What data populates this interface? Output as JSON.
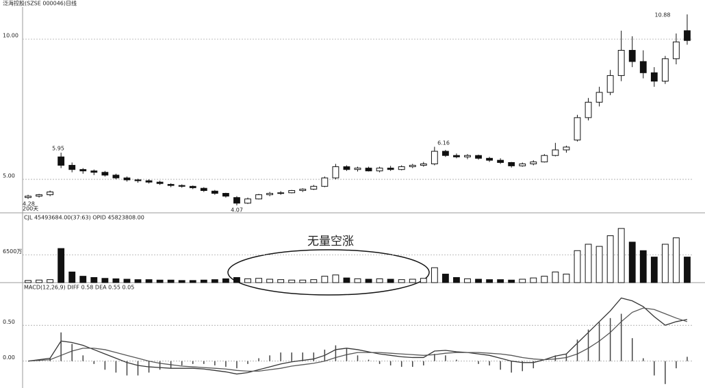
{
  "header": "泛海控股(SZSE 000046)日线",
  "chart_data": [
    {
      "type": "candlestick",
      "annotations": [
        "5.95",
        "6.16",
        "4.07",
        "10.88",
        "4.28",
        "200天"
      ],
      "ylim": [
        3.83,
        11.15
      ],
      "yticks": [
        {
          "value": 10,
          "label": "10.00"
        },
        {
          "value": 5,
          "label": "5.00"
        }
      ],
      "grid": true,
      "ohlc": [
        [
          4.35,
          4.45,
          4.3,
          4.4
        ],
        [
          4.4,
          4.48,
          4.35,
          4.45
        ],
        [
          4.45,
          4.6,
          4.4,
          4.55
        ],
        [
          5.8,
          5.95,
          5.4,
          5.5
        ],
        [
          5.5,
          5.6,
          5.25,
          5.35
        ],
        [
          5.35,
          5.4,
          5.2,
          5.3
        ],
        [
          5.3,
          5.35,
          5.15,
          5.25
        ],
        [
          5.25,
          5.3,
          5.1,
          5.15
        ],
        [
          5.15,
          5.2,
          5.0,
          5.05
        ],
        [
          5.05,
          5.1,
          4.92,
          4.98
        ],
        [
          4.98,
          5.02,
          4.88,
          4.95
        ],
        [
          4.95,
          5.0,
          4.85,
          4.9
        ],
        [
          4.9,
          4.95,
          4.8,
          4.85
        ],
        [
          4.82,
          4.86,
          4.72,
          4.78
        ],
        [
          4.78,
          4.82,
          4.7,
          4.75
        ],
        [
          4.75,
          4.78,
          4.65,
          4.7
        ],
        [
          4.68,
          4.72,
          4.55,
          4.6
        ],
        [
          4.58,
          4.62,
          4.45,
          4.5
        ],
        [
          4.5,
          4.52,
          4.35,
          4.4
        ],
        [
          4.35,
          4.4,
          4.07,
          4.15
        ],
        [
          4.15,
          4.35,
          4.12,
          4.3
        ],
        [
          4.3,
          4.48,
          4.28,
          4.45
        ],
        [
          4.45,
          4.55,
          4.4,
          4.5
        ],
        [
          4.5,
          4.58,
          4.45,
          4.52
        ],
        [
          4.52,
          4.62,
          4.5,
          4.6
        ],
        [
          4.6,
          4.68,
          4.55,
          4.65
        ],
        [
          4.65,
          4.8,
          4.62,
          4.75
        ],
        [
          4.75,
          5.1,
          4.72,
          5.05
        ],
        [
          5.05,
          5.55,
          5.0,
          5.45
        ],
        [
          5.45,
          5.5,
          5.3,
          5.35
        ],
        [
          5.35,
          5.45,
          5.28,
          5.4
        ],
        [
          5.4,
          5.45,
          5.28,
          5.3
        ],
        [
          5.3,
          5.45,
          5.25,
          5.4
        ],
        [
          5.4,
          5.48,
          5.3,
          5.35
        ],
        [
          5.35,
          5.5,
          5.32,
          5.45
        ],
        [
          5.45,
          5.55,
          5.4,
          5.5
        ],
        [
          5.5,
          5.62,
          5.45,
          5.55
        ],
        [
          5.55,
          6.16,
          5.5,
          6.0
        ],
        [
          6.0,
          6.05,
          5.8,
          5.85
        ],
        [
          5.85,
          5.92,
          5.75,
          5.8
        ],
        [
          5.8,
          5.9,
          5.72,
          5.85
        ],
        [
          5.85,
          5.88,
          5.7,
          5.75
        ],
        [
          5.75,
          5.8,
          5.62,
          5.68
        ],
        [
          5.68,
          5.75,
          5.55,
          5.6
        ],
        [
          5.6,
          5.62,
          5.42,
          5.48
        ],
        [
          5.48,
          5.6,
          5.45,
          5.55
        ],
        [
          5.55,
          5.68,
          5.5,
          5.62
        ],
        [
          5.62,
          5.9,
          5.6,
          5.85
        ],
        [
          5.85,
          6.3,
          5.82,
          6.05
        ],
        [
          6.05,
          6.2,
          5.95,
          6.15
        ],
        [
          6.4,
          7.3,
          6.35,
          7.2
        ],
        [
          7.2,
          7.9,
          7.1,
          7.75
        ],
        [
          7.75,
          8.3,
          7.6,
          8.1
        ],
        [
          8.1,
          8.9,
          8.0,
          8.7
        ],
        [
          8.7,
          10.3,
          8.5,
          9.6
        ],
        [
          9.6,
          10.1,
          9.0,
          9.2
        ],
        [
          9.2,
          9.6,
          8.6,
          8.8
        ],
        [
          8.8,
          9.0,
          8.3,
          8.5
        ],
        [
          8.5,
          9.4,
          8.4,
          9.3
        ],
        [
          9.3,
          10.2,
          9.1,
          9.9
        ],
        [
          10.3,
          10.88,
          9.8,
          9.95
        ]
      ]
    },
    {
      "type": "bar",
      "info": "CJL  45493684.00(37:63)    OPID  45823808.00",
      "annotations": [
        "无量空涨"
      ],
      "ylim": [
        0,
        14444
      ],
      "yticks": [
        {
          "value": 6500,
          "label": "6500万"
        }
      ],
      "grid": true,
      "values": [
        500,
        600,
        700,
        8000,
        2500,
        1500,
        1200,
        1000,
        900,
        800,
        700,
        700,
        600,
        600,
        500,
        500,
        600,
        700,
        900,
        1200,
        900,
        1000,
        800,
        700,
        600,
        600,
        700,
        1500,
        1800,
        1100,
        900,
        800,
        900,
        800,
        700,
        800,
        1000,
        3500,
        2000,
        1200,
        900,
        800,
        700,
        700,
        600,
        800,
        1100,
        1500,
        2500,
        2000,
        7500,
        9000,
        8500,
        11000,
        12700,
        9500,
        7500,
        6000,
        9000,
        10500,
        6000
      ]
    },
    {
      "type": "macd",
      "info": "MACD(12,26,9)  DIFF  0.58   DEA  0.55    0.05",
      "ylim": [
        -0.375,
        0.98
      ],
      "yticks": [
        {
          "value": 0.5,
          "label": "0.50"
        },
        {
          "value": 0,
          "label": "0.00"
        }
      ],
      "grid": true,
      "series": [
        {
          "name": "DIFF",
          "color": "#333",
          "values": [
            0,
            0.02,
            0.04,
            0.28,
            0.26,
            0.22,
            0.16,
            0.1,
            0.04,
            -0.02,
            -0.06,
            -0.08,
            -0.09,
            -0.1,
            -0.1,
            -0.1,
            -0.11,
            -0.13,
            -0.15,
            -0.18,
            -0.16,
            -0.12,
            -0.08,
            -0.04,
            -0.01,
            0.01,
            0.03,
            0.08,
            0.16,
            0.18,
            0.16,
            0.13,
            0.1,
            0.08,
            0.06,
            0.05,
            0.05,
            0.14,
            0.15,
            0.13,
            0.12,
            0.1,
            0.08,
            0.04,
            0.0,
            -0.02,
            -0.02,
            0.02,
            0.07,
            0.1,
            0.25,
            0.4,
            0.55,
            0.7,
            0.88,
            0.84,
            0.76,
            0.62,
            0.5,
            0.55,
            0.58
          ]
        },
        {
          "name": "DEA",
          "color": "#555",
          "values": [
            0,
            0.01,
            0.02,
            0.08,
            0.14,
            0.18,
            0.18,
            0.16,
            0.12,
            0.08,
            0.04,
            0.0,
            -0.03,
            -0.05,
            -0.07,
            -0.08,
            -0.09,
            -0.1,
            -0.11,
            -0.13,
            -0.14,
            -0.14,
            -0.12,
            -0.1,
            -0.07,
            -0.05,
            -0.03,
            0.0,
            0.05,
            0.09,
            0.12,
            0.12,
            0.12,
            0.11,
            0.1,
            0.09,
            0.08,
            0.09,
            0.11,
            0.12,
            0.12,
            0.12,
            0.11,
            0.1,
            0.08,
            0.05,
            0.03,
            0.02,
            0.03,
            0.05,
            0.1,
            0.18,
            0.28,
            0.4,
            0.55,
            0.68,
            0.74,
            0.72,
            0.66,
            0.6,
            0.55
          ]
        },
        {
          "name": "MACD",
          "color": "#444",
          "values": [
            0,
            0.02,
            0.04,
            0.4,
            0.24,
            0.08,
            -0.04,
            -0.12,
            -0.16,
            -0.2,
            -0.2,
            -0.16,
            -0.12,
            -0.1,
            -0.06,
            -0.04,
            -0.04,
            -0.06,
            -0.08,
            -0.1,
            -0.04,
            0.04,
            0.08,
            0.12,
            0.12,
            0.12,
            0.12,
            0.16,
            0.22,
            0.18,
            0.08,
            0.02,
            -0.04,
            -0.06,
            -0.08,
            -0.08,
            -0.06,
            0.1,
            0.08,
            0.02,
            0,
            -0.04,
            -0.06,
            -0.12,
            -0.16,
            -0.14,
            -0.1,
            0,
            0.08,
            0.1,
            0.3,
            0.44,
            0.54,
            0.6,
            0.66,
            0.32,
            0.04,
            -0.2,
            -0.32,
            -0.1,
            0.06
          ]
        }
      ]
    }
  ]
}
